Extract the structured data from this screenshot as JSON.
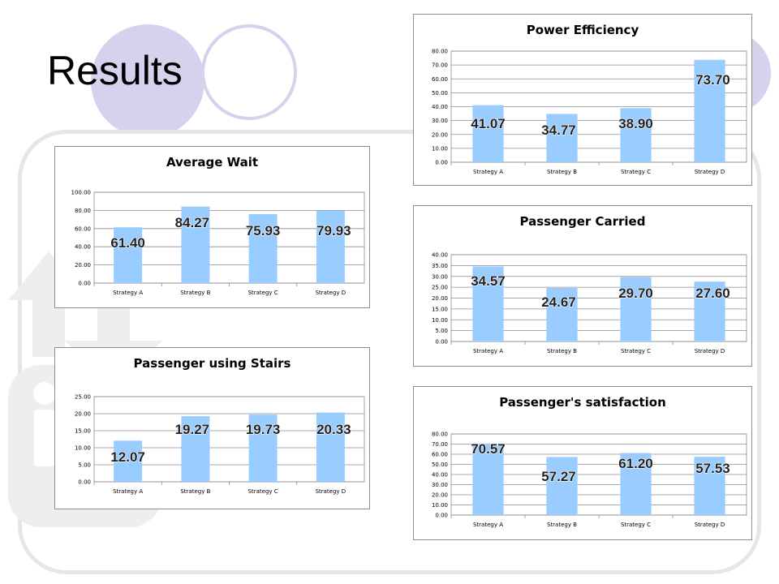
{
  "slide": {
    "title": "Results"
  },
  "chart_data": [
    {
      "id": "power",
      "type": "bar",
      "title": "Power Efficiency",
      "categories": [
        "Strategy A",
        "Strategy B",
        "Strategy C",
        "Strategy D"
      ],
      "values": [
        41.07,
        34.77,
        38.9,
        73.7
      ],
      "data_labels": [
        "41.07",
        "34.77",
        "38.90",
        "73.70"
      ],
      "ylim": [
        0,
        80
      ],
      "ystep": 10,
      "yticks": [
        "0.00",
        "10.00",
        "20.00",
        "30.00",
        "40.00",
        "50.00",
        "60.00",
        "70.00",
        "80.00"
      ],
      "bar_color": "#99ccff",
      "grid": true,
      "legend": false
    },
    {
      "id": "avgwait",
      "type": "bar",
      "title": "Average Wait",
      "categories": [
        "Strategy A",
        "Strategy B",
        "Strategy C",
        "Strategy D"
      ],
      "values": [
        61.4,
        84.27,
        75.93,
        79.93
      ],
      "data_labels": [
        "61.40",
        "84.27",
        "75.93",
        "79.93"
      ],
      "ylim": [
        0,
        100
      ],
      "ystep": 20,
      "yticks": [
        "0.00",
        "20.00",
        "40.00",
        "60.00",
        "80.00",
        "100.00"
      ],
      "bar_color": "#99ccff",
      "grid": true,
      "legend": false
    },
    {
      "id": "carried",
      "type": "bar",
      "title": "Passenger Carried",
      "categories": [
        "Strategy A",
        "Strategy B",
        "Strategy C",
        "Strategy D"
      ],
      "values": [
        34.57,
        24.67,
        29.7,
        27.6
      ],
      "data_labels": [
        "34.57",
        "24.67",
        "29.70",
        "27.60"
      ],
      "ylim": [
        0,
        40
      ],
      "ystep": 5,
      "yticks": [
        "0.00",
        "5.00",
        "10.00",
        "15.00",
        "20.00",
        "25.00",
        "30.00",
        "35.00",
        "40.00"
      ],
      "bar_color": "#99ccff",
      "grid": true,
      "legend": false
    },
    {
      "id": "stairs",
      "type": "bar",
      "title": "Passenger using Stairs",
      "categories": [
        "Strategy A",
        "Strategy B",
        "Strategy C",
        "Strategy D"
      ],
      "values": [
        12.07,
        19.27,
        19.73,
        20.33
      ],
      "data_labels": [
        "12.07",
        "19.27",
        "19.73",
        "20.33"
      ],
      "ylim": [
        0,
        25
      ],
      "ystep": 5,
      "yticks": [
        "0.00",
        "5.00",
        "10.00",
        "15.00",
        "20.00",
        "25.00"
      ],
      "bar_color": "#99ccff",
      "grid": true,
      "legend": false
    },
    {
      "id": "satisfaction",
      "type": "bar",
      "title": "Passenger's satisfaction",
      "categories": [
        "Strategy A",
        "Strategy B",
        "Strategy C",
        "Strategy D"
      ],
      "values": [
        70.57,
        57.27,
        61.2,
        57.53
      ],
      "data_labels": [
        "70.57",
        "57.27",
        "61.20",
        "57.53"
      ],
      "ylim": [
        0,
        80
      ],
      "ystep": 10,
      "yticks": [
        "0.00",
        "10.00",
        "20.00",
        "30.00",
        "40.00",
        "50.00",
        "60.00",
        "70.00",
        "80.00"
      ],
      "bar_color": "#99ccff",
      "grid": true,
      "legend": false
    }
  ]
}
